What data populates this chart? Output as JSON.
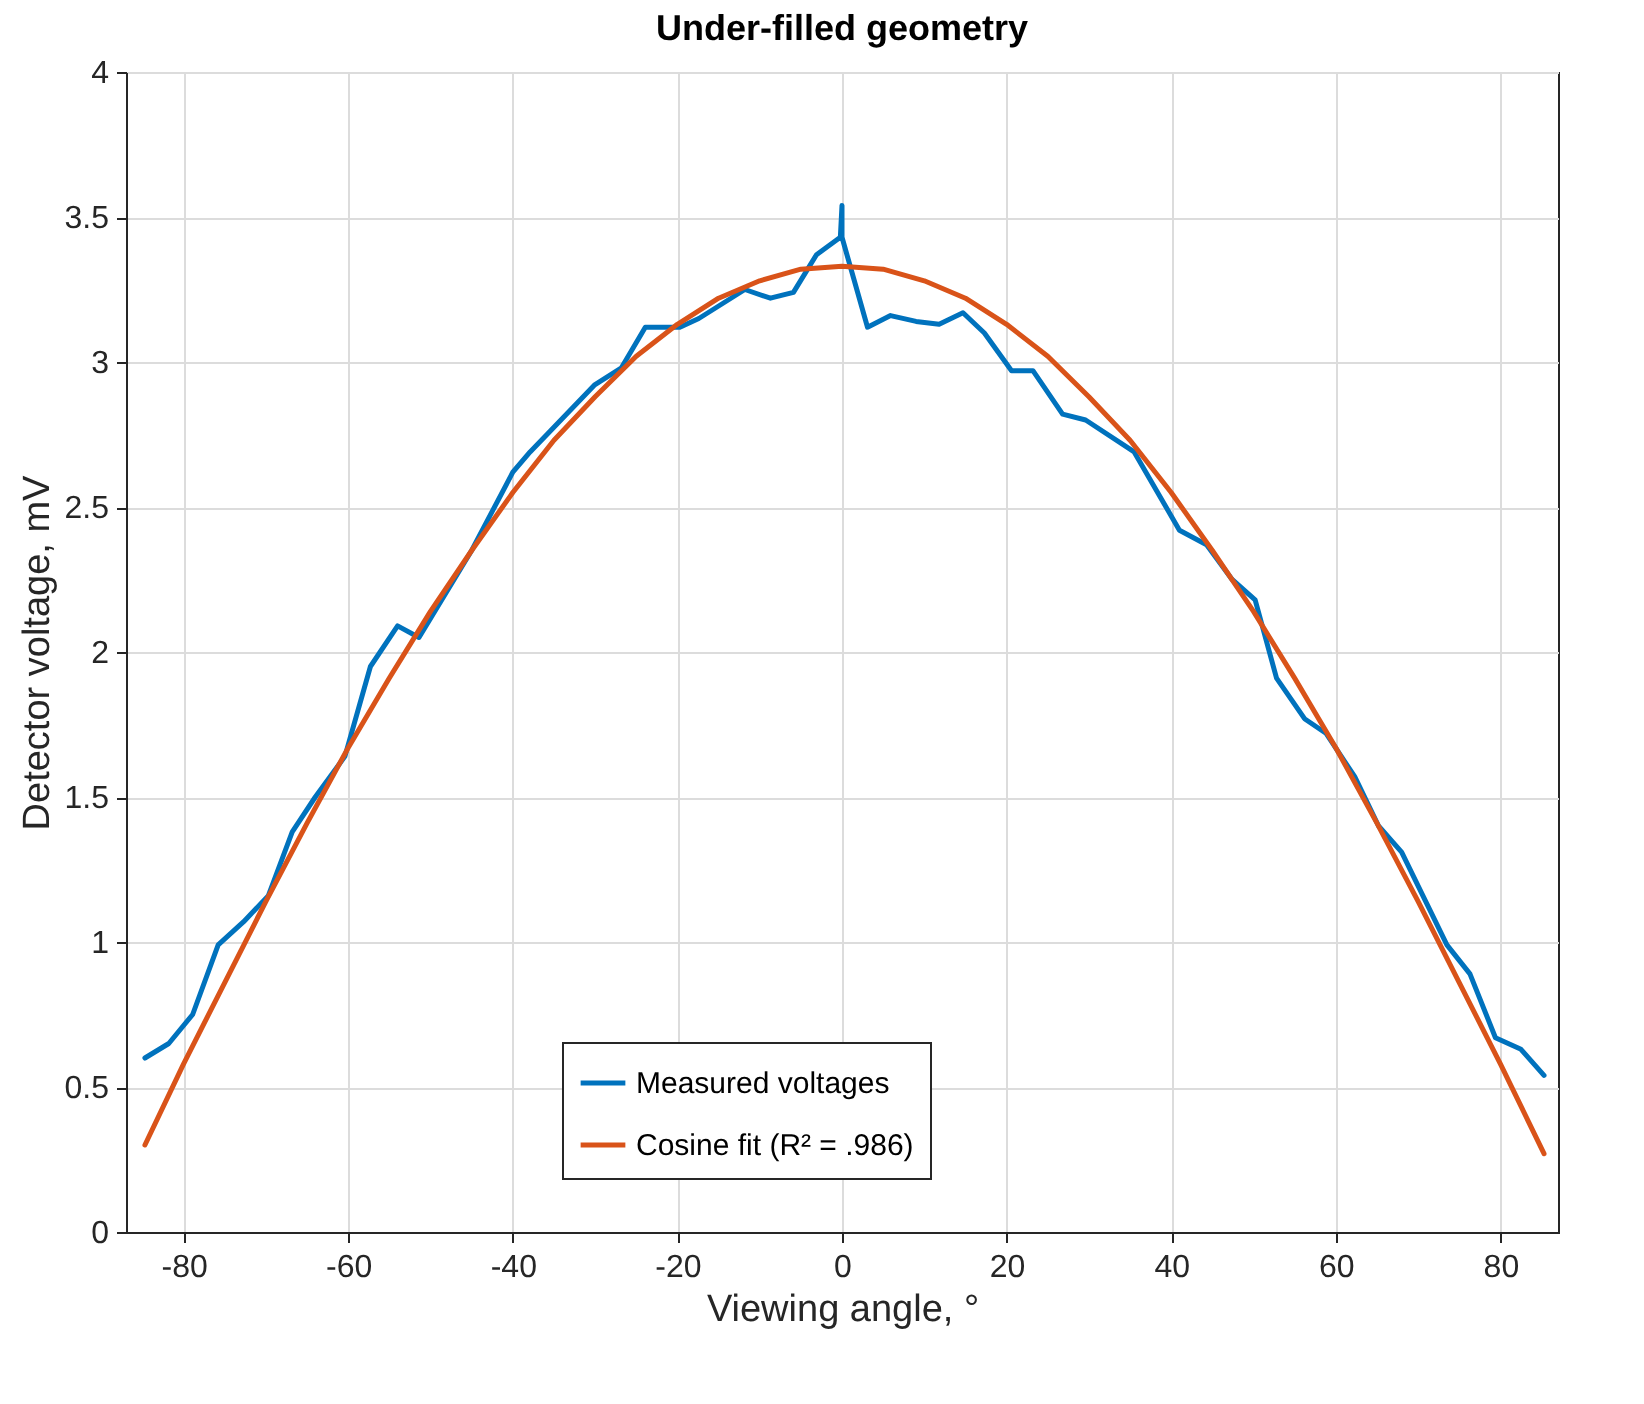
{
  "chart_data": {
    "type": "line",
    "title": "Under-filled geometry",
    "xlabel": "Viewing angle, °",
    "ylabel": "Detector voltage, mV",
    "xlim": [
      -87,
      87
    ],
    "ylim": [
      0,
      4
    ],
    "xticks": [
      -80,
      -60,
      -40,
      -20,
      0,
      20,
      40,
      60,
      80
    ],
    "yticks": [
      0,
      0.5,
      1,
      1.5,
      2,
      2.5,
      3,
      3.5,
      4
    ],
    "grid": true,
    "legend": "bottom",
    "series": [
      {
        "name": "Measured voltages",
        "color": "#0072bd",
        "x": [
          -84.7,
          -81.8,
          -78.9,
          -75.8,
          -72.7,
          -69.7,
          -66.8,
          -64,
          -60.4,
          -57.3,
          -54,
          -51.4,
          -45,
          -40,
          -37.9,
          -35.5,
          -30.1,
          -26.8,
          -23.9,
          -19.7,
          -17.4,
          -11.8,
          -8.7,
          -5.9,
          -3.1,
          -0.2,
          0,
          0,
          0.3,
          3.1,
          5.9,
          9,
          11.8,
          14.7,
          17.3,
          20.6,
          23.2,
          26.8,
          29.6,
          35.5,
          41,
          44.3,
          47.4,
          50.2,
          52.8,
          56.2,
          58.8,
          62.3,
          65.2,
          68,
          71.1,
          73.5,
          76.3,
          79.4,
          82.5,
          85.3
        ],
        "values": [
          0.6,
          0.65,
          0.75,
          0.99,
          1.07,
          1.16,
          1.38,
          1.5,
          1.64,
          1.95,
          2.09,
          2.05,
          2.35,
          2.62,
          2.69,
          2.76,
          2.92,
          2.98,
          3.12,
          3.12,
          3.15,
          3.25,
          3.22,
          3.24,
          3.37,
          3.43,
          3.54,
          3.43,
          3.4,
          3.12,
          3.16,
          3.14,
          3.13,
          3.17,
          3.1,
          2.97,
          2.97,
          2.82,
          2.8,
          2.69,
          2.42,
          2.37,
          2.25,
          2.18,
          1.91,
          1.77,
          1.72,
          1.57,
          1.4,
          1.31,
          1.13,
          0.99,
          0.89,
          0.67,
          0.63,
          0.54
        ]
      },
      {
        "name": "Cosine fit (R² = .986)",
        "color": "#d95319",
        "x": [
          -84.7,
          -80,
          -75,
          -70,
          -65,
          -60,
          -55,
          -50,
          -45,
          -40,
          -35,
          -30,
          -25,
          -20,
          -15,
          -10,
          -5,
          0,
          5,
          10,
          15,
          20,
          25,
          30,
          35,
          40,
          45,
          50,
          55,
          60,
          65,
          70,
          75,
          80,
          85.3
        ],
        "values": [
          0.3,
          0.58,
          0.86,
          1.14,
          1.41,
          1.67,
          1.91,
          2.14,
          2.35,
          2.55,
          2.73,
          2.88,
          3.02,
          3.13,
          3.22,
          3.28,
          3.32,
          3.33,
          3.32,
          3.28,
          3.22,
          3.13,
          3.02,
          2.88,
          2.73,
          2.55,
          2.35,
          2.14,
          1.91,
          1.67,
          1.41,
          1.14,
          0.86,
          0.58,
          0.27
        ]
      }
    ]
  }
}
